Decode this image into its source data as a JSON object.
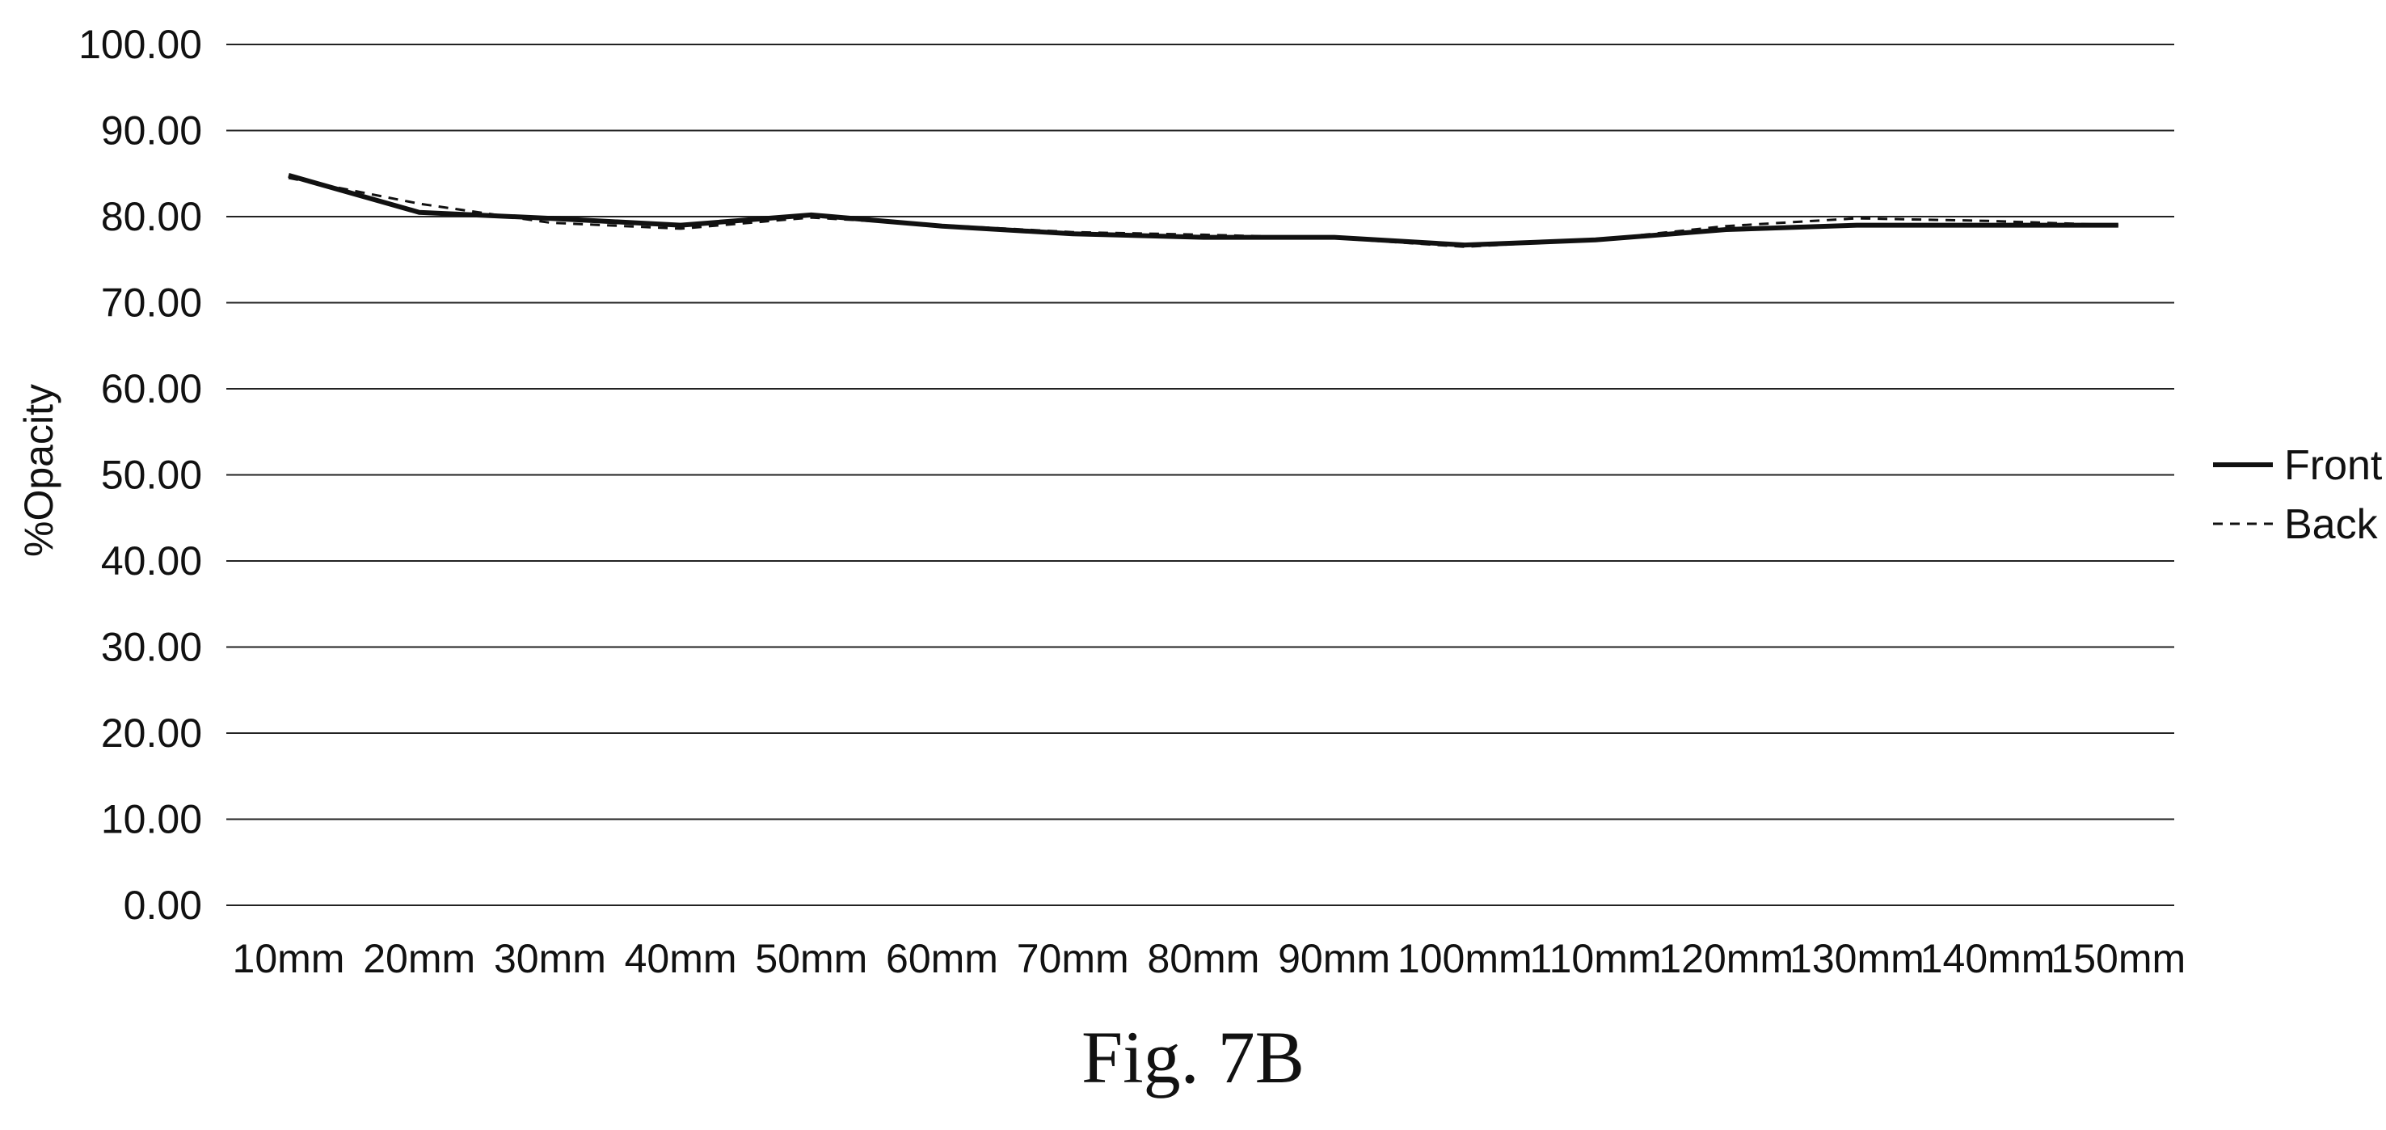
{
  "chart_data": {
    "type": "line",
    "categories": [
      "10mm",
      "20mm",
      "30mm",
      "40mm",
      "50mm",
      "60mm",
      "70mm",
      "80mm",
      "90mm",
      "100mm",
      "110mm",
      "120mm",
      "130mm",
      "140mm",
      "150mm"
    ],
    "series": [
      {
        "name": "Front",
        "style": "solid",
        "values": [
          84.8,
          80.5,
          79.8,
          79.0,
          80.2,
          78.9,
          78.0,
          77.6,
          77.6,
          76.7,
          77.3,
          78.5,
          79.0,
          79.0,
          79.0
        ]
      },
      {
        "name": "Back",
        "style": "dashed",
        "values": [
          84.5,
          81.5,
          79.3,
          78.6,
          79.9,
          79.0,
          78.2,
          77.9,
          77.5,
          76.5,
          77.3,
          78.9,
          79.8,
          79.5,
          79.0
        ]
      }
    ],
    "y_ticks": [
      "0.00",
      "10.00",
      "20.00",
      "30.00",
      "40.00",
      "50.00",
      "60.00",
      "70.00",
      "80.00",
      "90.00",
      "100.00"
    ],
    "ylim": [
      0,
      100
    ],
    "ylabel": "%Opacity",
    "xlabel": "",
    "grid": "horizontal",
    "legend_position": "right",
    "line_color": "#111111"
  },
  "caption": "Fig. 7B"
}
